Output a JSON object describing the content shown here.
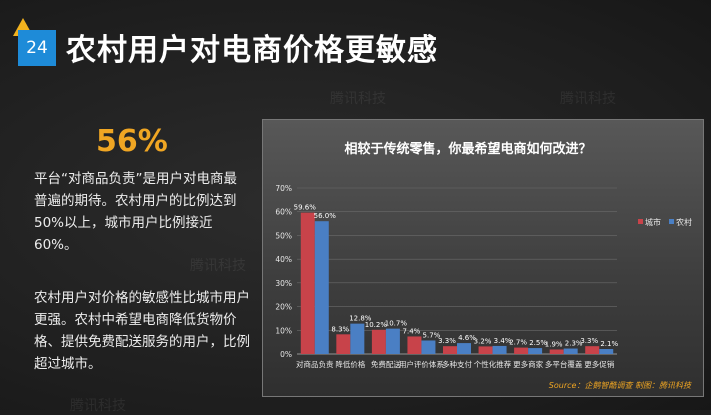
{
  "slide": {
    "number": "24",
    "title": "农村用户对电商价格更敏感",
    "highlight": "56%",
    "paragraph1": "平台“对商品负责”是用户对电商最普遍的期待。农村用户的比例达到50%以上，城市用户比例接近60%。",
    "paragraph2": "农村用户对价格的敏感性比城市用户更强。农村中希望电商降低货物价格、提供免费配送服务的用户，比例超过城市。",
    "watermark": "腾讯科技"
  },
  "colors": {
    "accent": "#1e8bd8",
    "highlight": "#f0a623",
    "city": "#c8434a",
    "rural": "#4a7fc4"
  },
  "chart_data": {
    "type": "bar",
    "title": "相较于传统零售，你最希望电商如何改进？",
    "categories": [
      "对商品负责",
      "降低价格",
      "免费配送",
      "用户评价体系",
      "多种支付",
      "个性化推荐",
      "更多商家",
      "多平台覆盖",
      "更多促销"
    ],
    "series": [
      {
        "name": "城市",
        "values": [
          59.6,
          8.3,
          10.2,
          7.4,
          3.3,
          3.2,
          2.7,
          1.9,
          3.3
        ],
        "labels": [
          "59.6%",
          "8.3%",
          "10.2%",
          "7.4%",
          "3.3%",
          "3.2%",
          "2.7%",
          "1.9%",
          "3.3%"
        ]
      },
      {
        "name": "农村",
        "values": [
          56.0,
          12.8,
          10.7,
          5.7,
          4.6,
          3.4,
          2.5,
          2.3,
          2.1
        ],
        "labels": [
          "56.0%",
          "12.8%",
          "10.7%",
          "5.7%",
          "4.6%",
          "3.4%",
          "2.5%",
          "2.3%",
          "2.1%"
        ]
      }
    ],
    "ylim": [
      0,
      70
    ],
    "yticks": [
      "0%",
      "10%",
      "20%",
      "30%",
      "40%",
      "50%",
      "60%",
      "70%"
    ],
    "legend": "right",
    "source": "Source：企鹅智酷调查 制图：腾讯科技"
  }
}
